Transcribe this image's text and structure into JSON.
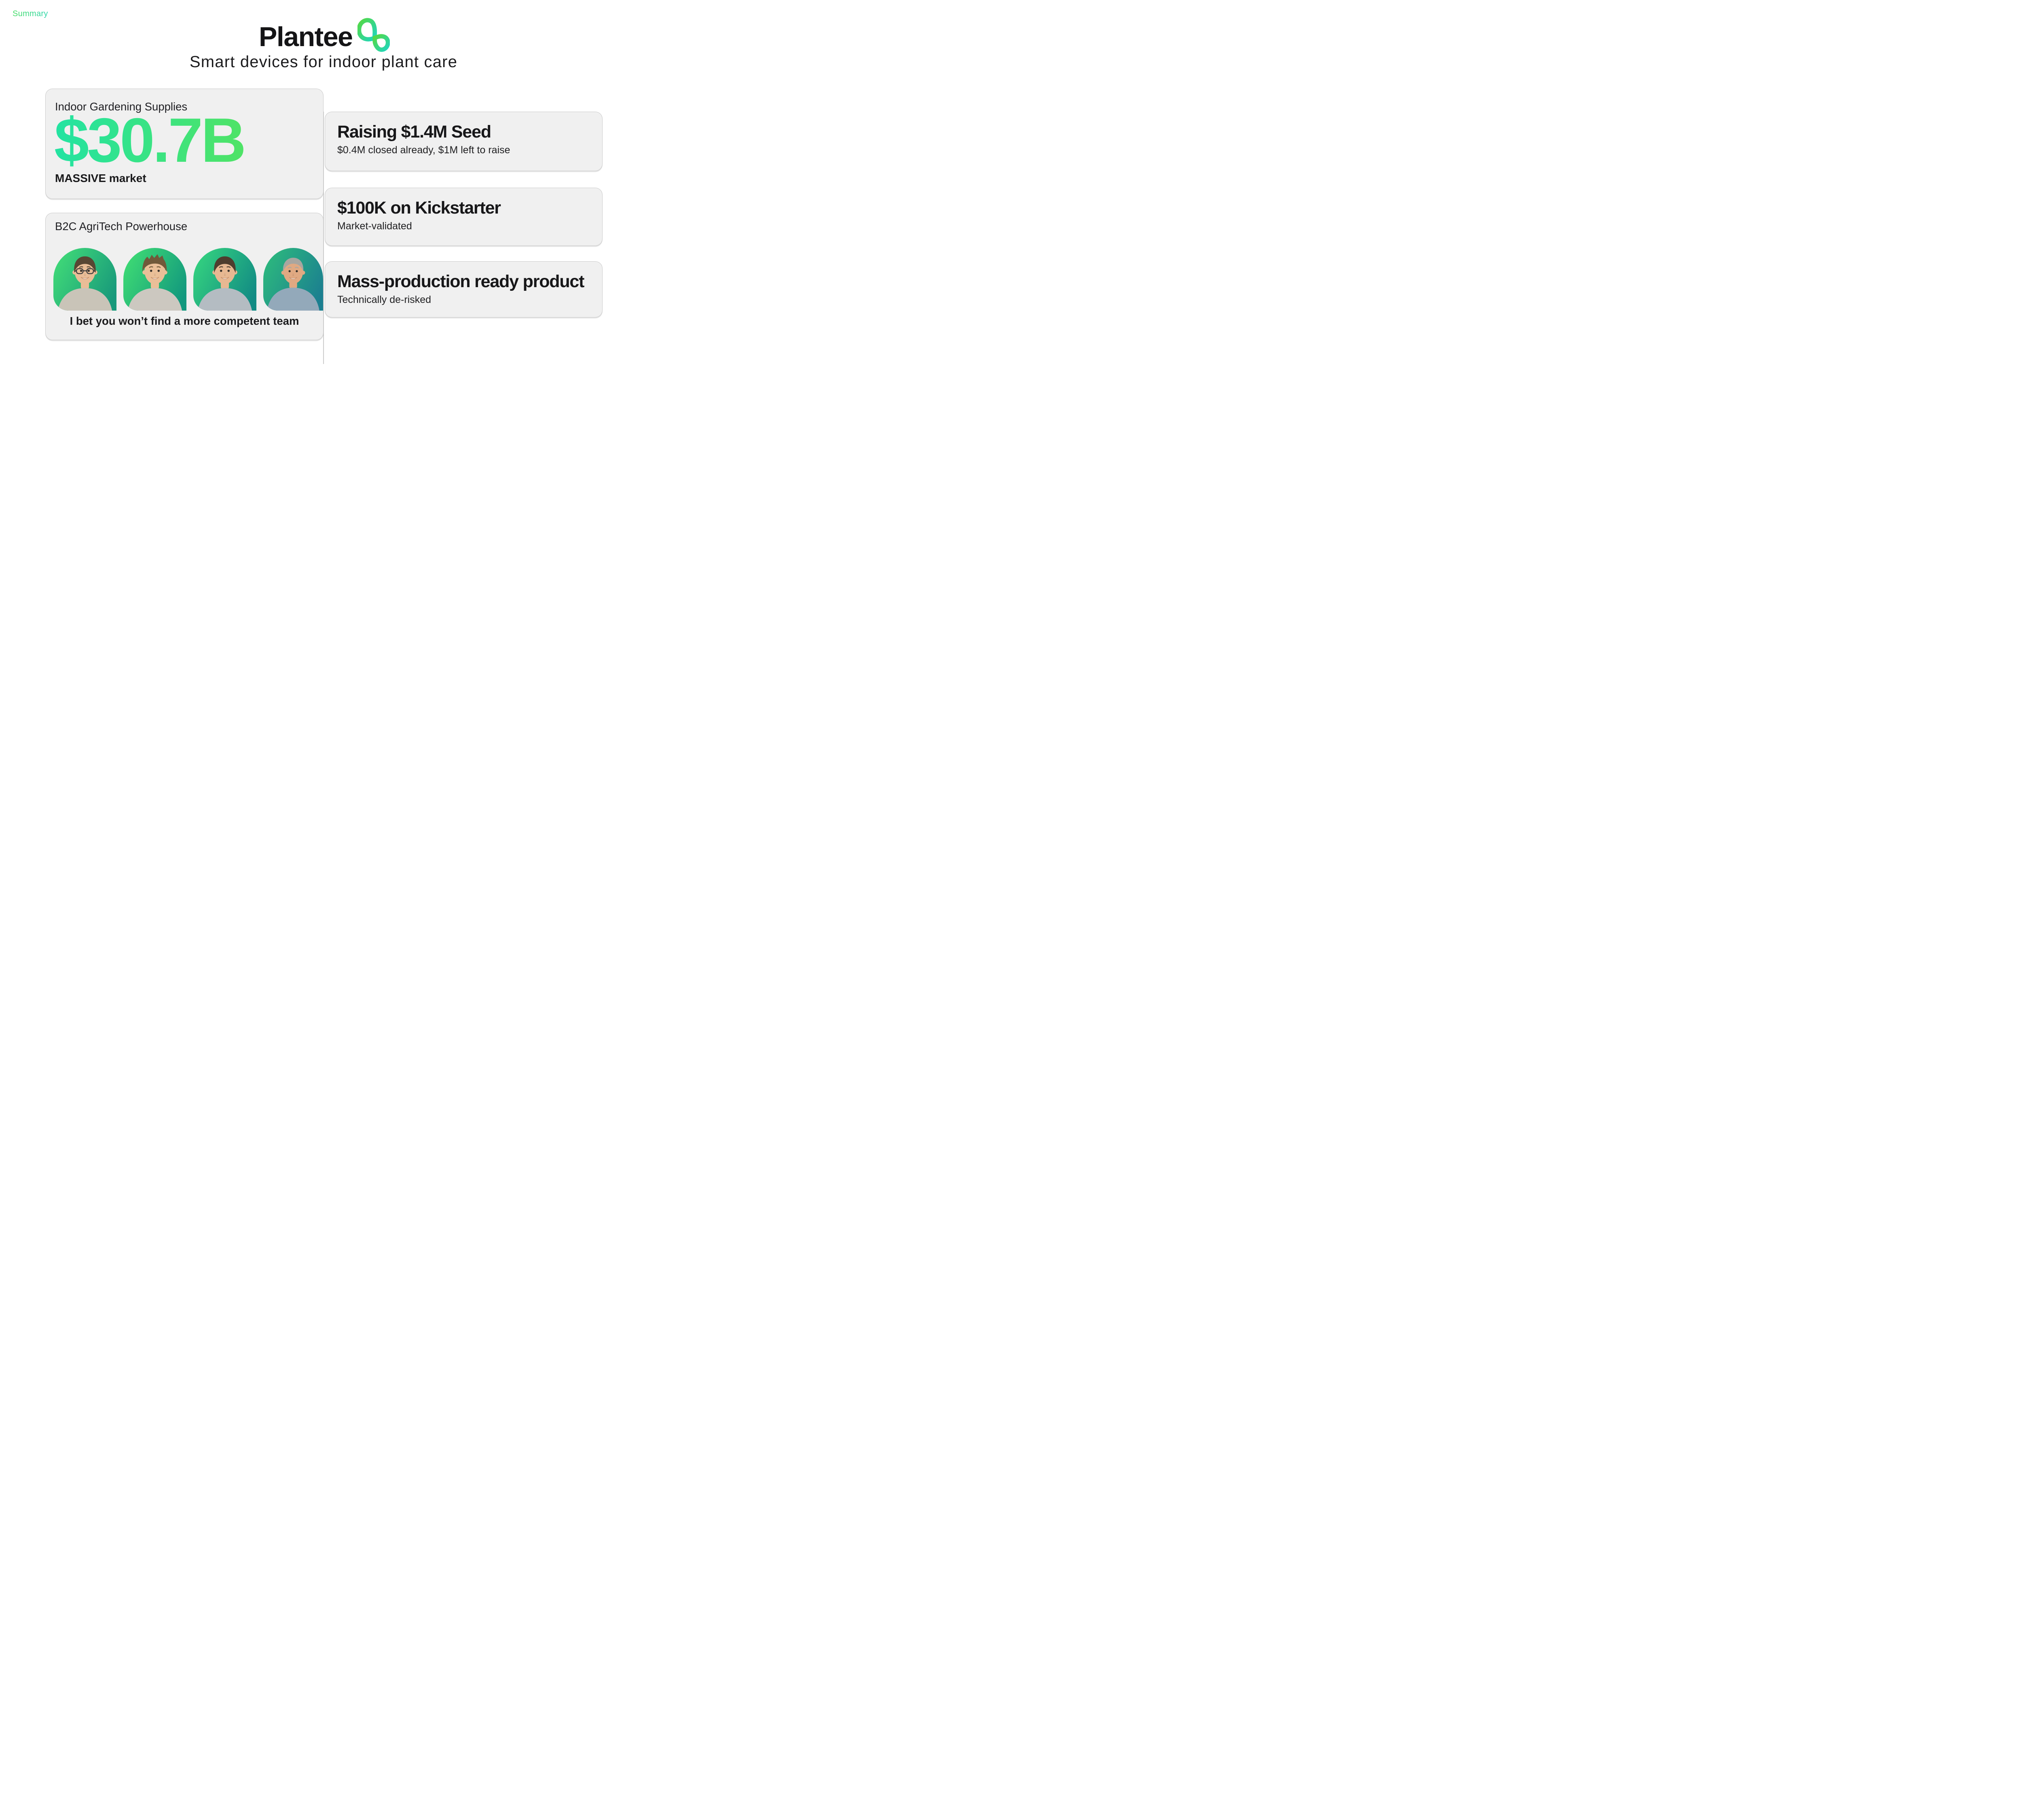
{
  "slide": {
    "section_label": "Summary",
    "tagline": "Smart devices for indoor plant care"
  },
  "logo": {
    "text": "Plantee",
    "icon": "plantee-leaf-loops",
    "icon_gradient": [
      "#55d943",
      "#1fd5be"
    ]
  },
  "colors": {
    "background": "#ffffff",
    "card_bg": "#f0f0f0",
    "card_border": "#cbcbcb",
    "divider": "#cbcbcb",
    "summary_gradient": [
      "#45dd63",
      "#2bd5ab"
    ],
    "amount_gradient": [
      "#23e3a2",
      "#4fe366"
    ],
    "text_dark": "#1c1c1e"
  },
  "market_card": {
    "title": "Indoor Gardening Supplies",
    "amount": "$30.7B",
    "note": "MASSIVE market"
  },
  "team_card": {
    "title": "B2C AgriTech Powerhouse",
    "caption": "I bet you won’t find a more competent team",
    "members": [
      {
        "hairstyle": "short",
        "glasses": true,
        "bg": [
          "#3fd878",
          "#18997b"
        ],
        "skin": "#e9bd97",
        "hair": "#574633",
        "shirt": "#c9c4b8"
      },
      {
        "hairstyle": "spiky",
        "glasses": false,
        "bg": [
          "#3dd974",
          "#12987e"
        ],
        "skin": "#eabf98",
        "hair": "#70593a",
        "shirt": "#ccc8c0"
      },
      {
        "hairstyle": "short",
        "glasses": false,
        "bg": [
          "#33d07f",
          "#128b84"
        ],
        "skin": "#e7b892",
        "hair": "#4e3d2e",
        "shirt": "#b4bcc2"
      },
      {
        "hairstyle": "older",
        "glasses": false,
        "bg": [
          "#2cb77e",
          "#1b7f90"
        ],
        "skin": "#e0a982",
        "hair": "#a8a6a0",
        "shirt": "#93a9ba"
      }
    ]
  },
  "right_cards": [
    {
      "title": "Raising $1.4M Seed",
      "subtitle": "$0.4M closed already, $1M left to raise"
    },
    {
      "title": "$100K on Kickstarter",
      "subtitle": "Market-validated"
    },
    {
      "title": "Mass-production ready product",
      "subtitle": "Technically de-risked"
    }
  ]
}
